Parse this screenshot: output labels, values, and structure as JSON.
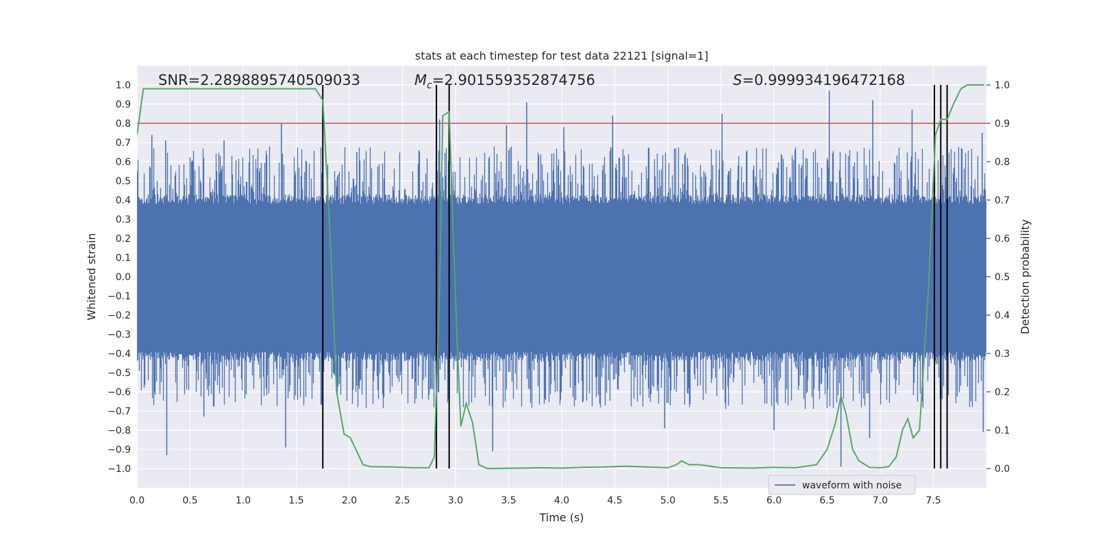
{
  "chart_data": {
    "type": "line",
    "title": "stats at each timestep for test data 22121 [signal=1]",
    "xlabel": "Time (s)",
    "ylabel_left": "Whitened strain",
    "ylabel_right": "Detection probability",
    "xlim": [
      0.0,
      8.0
    ],
    "ylim_left": [
      -1.1,
      1.1
    ],
    "ylim_right": [
      -0.05,
      1.05
    ],
    "x_ticks": [
      "0.0",
      "0.5",
      "1.0",
      "1.5",
      "2.0",
      "2.5",
      "3.0",
      "3.5",
      "4.0",
      "4.5",
      "5.0",
      "5.5",
      "6.0",
      "6.5",
      "7.0",
      "7.5"
    ],
    "y_left_ticks": [
      "1.0",
      "0.9",
      "0.8",
      "0.7",
      "0.6",
      "0.5",
      "0.4",
      "0.3",
      "0.2",
      "0.1",
      "0.0",
      "−0.1",
      "−0.2",
      "−0.3",
      "−0.4",
      "−0.5",
      "−0.6",
      "−0.7",
      "−0.8",
      "−0.9",
      "−1.0"
    ],
    "y_right_ticks": [
      "1.0",
      "0.9",
      "0.8",
      "0.7",
      "0.6",
      "0.5",
      "0.4",
      "0.3",
      "0.2",
      "0.1",
      "0.0"
    ],
    "annotations": {
      "snr": "SNR=2.2898895740509033",
      "mc_symbol": "M",
      "mc_sub": "c",
      "mc_value": "=2.901559352874756",
      "s_symbol": "S",
      "s_value": "=0.999934196472168"
    },
    "threshold": 0.9,
    "detection_marks_x": [
      1.75,
      2.82,
      2.94,
      7.51,
      7.57,
      7.63
    ],
    "waveform": {
      "name": "waveform with noise",
      "color": "#4c72b0",
      "envelope_low_hi": [
        -0.39,
        0.38
      ],
      "spikes_high": [
        [
          0.14,
          0.74
        ],
        [
          0.27,
          0.71
        ],
        [
          0.82,
          0.71
        ],
        [
          1.36,
          0.8
        ],
        [
          2.07,
          0.65
        ],
        [
          2.85,
          0.82
        ],
        [
          2.94,
          0.85
        ],
        [
          3.48,
          0.79
        ],
        [
          3.67,
          0.91
        ],
        [
          4.02,
          0.78
        ],
        [
          4.48,
          0.84
        ],
        [
          5.51,
          0.85
        ],
        [
          6.52,
          0.97
        ],
        [
          6.93,
          0.92
        ],
        [
          7.3,
          0.87
        ],
        [
          7.96,
          0.75
        ]
      ],
      "spikes_low": [
        [
          0.28,
          -0.93
        ],
        [
          0.63,
          -0.73
        ],
        [
          1.4,
          -0.89
        ],
        [
          3.35,
          -0.91
        ],
        [
          4.97,
          -0.79
        ],
        [
          6.0,
          -0.8
        ],
        [
          6.63,
          -0.99
        ],
        [
          6.9,
          -0.84
        ],
        [
          7.97,
          -0.81
        ]
      ]
    },
    "probability": {
      "color": "#55a868",
      "points": [
        [
          0.0,
          0.87
        ],
        [
          0.06,
          0.99
        ],
        [
          0.2,
          0.99
        ],
        [
          0.4,
          0.99
        ],
        [
          0.6,
          0.99
        ],
        [
          0.8,
          0.99
        ],
        [
          1.0,
          0.99
        ],
        [
          1.2,
          0.99
        ],
        [
          1.4,
          0.99
        ],
        [
          1.68,
          0.99
        ],
        [
          1.75,
          0.96
        ],
        [
          1.82,
          0.6
        ],
        [
          1.88,
          0.2
        ],
        [
          1.95,
          0.09
        ],
        [
          2.01,
          0.08
        ],
        [
          2.07,
          0.045
        ],
        [
          2.13,
          0.01
        ],
        [
          2.2,
          0.005
        ],
        [
          2.4,
          0.004
        ],
        [
          2.6,
          0.002
        ],
        [
          2.75,
          0.002
        ],
        [
          2.8,
          0.03
        ],
        [
          2.85,
          0.47
        ],
        [
          2.88,
          0.92
        ],
        [
          2.94,
          0.93
        ],
        [
          2.98,
          0.6
        ],
        [
          3.02,
          0.3
        ],
        [
          3.05,
          0.11
        ],
        [
          3.1,
          0.17
        ],
        [
          3.16,
          0.12
        ],
        [
          3.22,
          0.01
        ],
        [
          3.3,
          0.0
        ],
        [
          3.6,
          0.001
        ],
        [
          3.8,
          0.002
        ],
        [
          4.0,
          0.001
        ],
        [
          4.2,
          0.003
        ],
        [
          4.4,
          0.004
        ],
        [
          4.6,
          0.006
        ],
        [
          4.8,
          0.004
        ],
        [
          5.0,
          0.002
        ],
        [
          5.08,
          0.01
        ],
        [
          5.13,
          0.02
        ],
        [
          5.2,
          0.01
        ],
        [
          5.3,
          0.01
        ],
        [
          5.5,
          0.002
        ],
        [
          5.8,
          0.001
        ],
        [
          6.0,
          0.003
        ],
        [
          6.2,
          0.002
        ],
        [
          6.4,
          0.01
        ],
        [
          6.5,
          0.05
        ],
        [
          6.58,
          0.12
        ],
        [
          6.63,
          0.19
        ],
        [
          6.68,
          0.14
        ],
        [
          6.74,
          0.05
        ],
        [
          6.8,
          0.02
        ],
        [
          6.9,
          0.003
        ],
        [
          7.0,
          0.002
        ],
        [
          7.08,
          0.005
        ],
        [
          7.15,
          0.03
        ],
        [
          7.21,
          0.1
        ],
        [
          7.26,
          0.13
        ],
        [
          7.31,
          0.08
        ],
        [
          7.37,
          0.1
        ],
        [
          7.45,
          0.45
        ],
        [
          7.52,
          0.87
        ],
        [
          7.57,
          0.91
        ],
        [
          7.63,
          0.91
        ],
        [
          7.69,
          0.95
        ],
        [
          7.76,
          0.99
        ],
        [
          7.82,
          1.0
        ],
        [
          7.98,
          1.0
        ]
      ]
    },
    "legend": {
      "label": "waveform with noise",
      "placement": "lower-right"
    }
  }
}
